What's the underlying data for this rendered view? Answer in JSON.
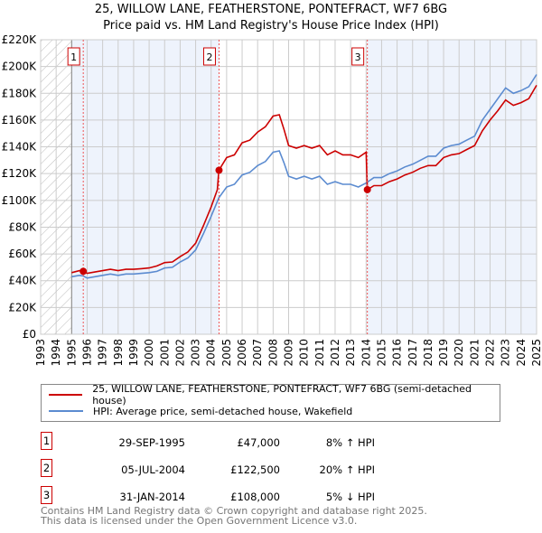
{
  "chart_data": {
    "type": "line",
    "title": "25, WILLOW LANE, FEATHERSTONE, PONTEFRACT, WF7 6BG",
    "subtitle": "Price paid vs. HM Land Registry's House Price Index (HPI)",
    "xlim": [
      1993,
      2025
    ],
    "ylim": [
      0,
      220000
    ],
    "y_ticks": [
      {
        "v": 0,
        "label": "£0"
      },
      {
        "v": 20000,
        "label": "£20K"
      },
      {
        "v": 40000,
        "label": "£40K"
      },
      {
        "v": 60000,
        "label": "£60K"
      },
      {
        "v": 80000,
        "label": "£80K"
      },
      {
        "v": 100000,
        "label": "£100K"
      },
      {
        "v": 120000,
        "label": "£120K"
      },
      {
        "v": 140000,
        "label": "£140K"
      },
      {
        "v": 160000,
        "label": "£160K"
      },
      {
        "v": 180000,
        "label": "£180K"
      },
      {
        "v": 200000,
        "label": "£200K"
      },
      {
        "v": 220000,
        "label": "£220K"
      }
    ],
    "x_ticks": [
      "1993",
      "1994",
      "1995",
      "1996",
      "1997",
      "1998",
      "1999",
      "2000",
      "2001",
      "2002",
      "2003",
      "2004",
      "2005",
      "2006",
      "2007",
      "2008",
      "2009",
      "2010",
      "2011",
      "2012",
      "2013",
      "2014",
      "2015",
      "2016",
      "2017",
      "2018",
      "2019",
      "2020",
      "2021",
      "2022",
      "2023",
      "2024",
      "2025"
    ],
    "grid": true,
    "colors": {
      "property": "#cc0000",
      "hpi": "#5b8bd0",
      "shade": "#eef3fc",
      "hatch": "#bbbbbb"
    },
    "series": [
      {
        "name": "25, WILLOW LANE, FEATHERSTONE, PONTEFRACT, WF7 6BG (semi-detached house)",
        "color": "#cc0000",
        "points": [
          [
            1995,
            46
          ],
          [
            1995.5,
            47.5
          ],
          [
            1995.75,
            47
          ],
          [
            1996,
            45.5
          ],
          [
            1996.5,
            46.5
          ],
          [
            1997,
            47.5
          ],
          [
            1997.5,
            48.5
          ],
          [
            1998,
            47.5
          ],
          [
            1998.5,
            48.5
          ],
          [
            1999,
            48.5
          ],
          [
            1999.5,
            49
          ],
          [
            2000,
            49.5
          ],
          [
            2000.5,
            51
          ],
          [
            2001,
            53.5
          ],
          [
            2001.5,
            54
          ],
          [
            2002,
            58
          ],
          [
            2002.5,
            61.5
          ],
          [
            2003,
            68
          ],
          [
            2003.5,
            81
          ],
          [
            2004,
            95
          ],
          [
            2004.4,
            108
          ],
          [
            2004.5,
            122.5
          ],
          [
            2005,
            132
          ],
          [
            2005.5,
            134
          ],
          [
            2006,
            143
          ],
          [
            2006.5,
            145
          ],
          [
            2007,
            151
          ],
          [
            2007.5,
            155
          ],
          [
            2008,
            163
          ],
          [
            2008.4,
            164
          ],
          [
            2008.7,
            153
          ],
          [
            2009,
            141
          ],
          [
            2009.5,
            139
          ],
          [
            2010,
            141
          ],
          [
            2010.5,
            139
          ],
          [
            2011,
            141
          ],
          [
            2011.5,
            134
          ],
          [
            2012,
            137
          ],
          [
            2012.5,
            134
          ],
          [
            2013,
            134
          ],
          [
            2013.5,
            132
          ],
          [
            2014,
            136
          ],
          [
            2014.08,
            108
          ],
          [
            2014.5,
            111
          ],
          [
            2015,
            111
          ],
          [
            2015.5,
            114
          ],
          [
            2016,
            116
          ],
          [
            2016.5,
            119
          ],
          [
            2017,
            121
          ],
          [
            2017.5,
            124
          ],
          [
            2018,
            126
          ],
          [
            2018.5,
            126
          ],
          [
            2019,
            132
          ],
          [
            2019.5,
            134
          ],
          [
            2020,
            135
          ],
          [
            2020.5,
            138
          ],
          [
            2021,
            141
          ],
          [
            2021.5,
            152
          ],
          [
            2022,
            160
          ],
          [
            2022.5,
            167
          ],
          [
            2023,
            175
          ],
          [
            2023.5,
            171
          ],
          [
            2024,
            173
          ],
          [
            2024.5,
            176
          ],
          [
            2025,
            186
          ]
        ]
      },
      {
        "name": "HPI: Average price, semi-detached house, Wakefield",
        "color": "#5b8bd0",
        "points": [
          [
            1995,
            43
          ],
          [
            1995.5,
            44
          ],
          [
            1995.75,
            43.5
          ],
          [
            1996,
            42
          ],
          [
            1996.5,
            43
          ],
          [
            1997,
            44
          ],
          [
            1997.5,
            45
          ],
          [
            1998,
            44
          ],
          [
            1998.5,
            45
          ],
          [
            1999,
            45
          ],
          [
            1999.5,
            45.5
          ],
          [
            2000,
            46
          ],
          [
            2000.5,
            47
          ],
          [
            2001,
            49.5
          ],
          [
            2001.5,
            50
          ],
          [
            2002,
            54
          ],
          [
            2002.5,
            57
          ],
          [
            2003,
            63
          ],
          [
            2003.5,
            75
          ],
          [
            2004,
            88
          ],
          [
            2004.5,
            102
          ],
          [
            2005,
            110
          ],
          [
            2005.5,
            112
          ],
          [
            2006,
            119
          ],
          [
            2006.5,
            121
          ],
          [
            2007,
            126
          ],
          [
            2007.5,
            129
          ],
          [
            2008,
            136
          ],
          [
            2008.4,
            137
          ],
          [
            2008.7,
            128
          ],
          [
            2009,
            118
          ],
          [
            2009.5,
            116
          ],
          [
            2010,
            118
          ],
          [
            2010.5,
            116
          ],
          [
            2011,
            118
          ],
          [
            2011.5,
            112
          ],
          [
            2012,
            114
          ],
          [
            2012.5,
            112
          ],
          [
            2013,
            112
          ],
          [
            2013.5,
            110
          ],
          [
            2014,
            113
          ],
          [
            2014.5,
            117
          ],
          [
            2015,
            117
          ],
          [
            2015.5,
            120
          ],
          [
            2016,
            122
          ],
          [
            2016.5,
            125
          ],
          [
            2017,
            127
          ],
          [
            2017.5,
            130
          ],
          [
            2018,
            133
          ],
          [
            2018.5,
            133
          ],
          [
            2019,
            139
          ],
          [
            2019.5,
            141
          ],
          [
            2020,
            142
          ],
          [
            2020.5,
            145
          ],
          [
            2021,
            148
          ],
          [
            2021.5,
            160
          ],
          [
            2022,
            168
          ],
          [
            2022.5,
            176
          ],
          [
            2023,
            184
          ],
          [
            2023.5,
            180
          ],
          [
            2024,
            182
          ],
          [
            2024.5,
            185
          ],
          [
            2025,
            194
          ]
        ]
      }
    ],
    "sales": [
      {
        "label": "1",
        "x": 1995.75,
        "value": 47000
      },
      {
        "label": "2",
        "x": 2004.51,
        "value": 122500
      },
      {
        "label": "3",
        "x": 2014.08,
        "value": 108000
      }
    ]
  },
  "legend": {
    "property": "25, WILLOW LANE, FEATHERSTONE, PONTEFRACT, WF7 6BG (semi-detached house)",
    "hpi": "HPI: Average price, semi-detached house, Wakefield"
  },
  "transactions": [
    {
      "num": "1",
      "date": "29-SEP-1995",
      "price": "£47,000",
      "hpi": "8% ↑ HPI"
    },
    {
      "num": "2",
      "date": "05-JUL-2004",
      "price": "£122,500",
      "hpi": "20% ↑ HPI"
    },
    {
      "num": "3",
      "date": "31-JAN-2014",
      "price": "£108,000",
      "hpi": "5% ↓ HPI"
    }
  ],
  "footer": {
    "line1": "Contains HM Land Registry data © Crown copyright and database right 2025.",
    "line2": "This data is licensed under the Open Government Licence v3.0."
  }
}
